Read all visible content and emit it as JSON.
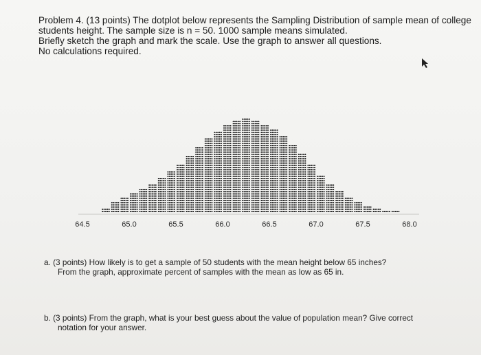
{
  "problem": {
    "line1": "Problem 4. (13 points) The dotplot below represents the Sampling Distribution of sample mean of college",
    "line2": "students height.  The sample size is n = 50.  1000 sample means simulated.",
    "line3": "Briefly sketch the graph and mark the scale.  Use the graph to answer all questions.",
    "line4": "No calculations required."
  },
  "chart_data": {
    "type": "scatter",
    "plot_style": "dotplot",
    "xlim": [
      64.5,
      68.0
    ],
    "x_ticks": [
      "64.5",
      "65.0",
      "65.5",
      "66.0",
      "66.5",
      "67.0",
      "67.5",
      "68.0"
    ],
    "sample_size": 50,
    "num_sample_means": 1000,
    "approx_stack_counts": {
      "x": [
        64.75,
        64.85,
        64.95,
        65.05,
        65.15,
        65.25,
        65.35,
        65.45,
        65.55,
        65.65,
        65.75,
        65.85,
        65.95,
        66.05,
        66.15,
        66.25,
        66.35,
        66.45,
        66.55,
        66.65,
        66.75,
        66.85,
        66.95,
        67.05,
        67.15,
        67.25,
        67.35,
        67.45,
        67.55,
        67.65,
        67.75,
        67.85
      ],
      "count": [
        2,
        5,
        7,
        9,
        11,
        13,
        16,
        19,
        22,
        26,
        30,
        34,
        37,
        40,
        42,
        43,
        42,
        40,
        38,
        35,
        31,
        27,
        22,
        17,
        13,
        10,
        7,
        5,
        3,
        2,
        1,
        1
      ]
    }
  },
  "questions": {
    "a_line1": "a.  (3 points) How likely is to get a sample of 50 students with the mean height below 65 inches?",
    "a_line2": "From the graph, approximate percent of samples with the mean as low as 65 in.",
    "b_line1": "b.  (3 points) From the graph, what is your best guess about the value of population mean? Give correct",
    "b_line2": "notation for your answer."
  }
}
